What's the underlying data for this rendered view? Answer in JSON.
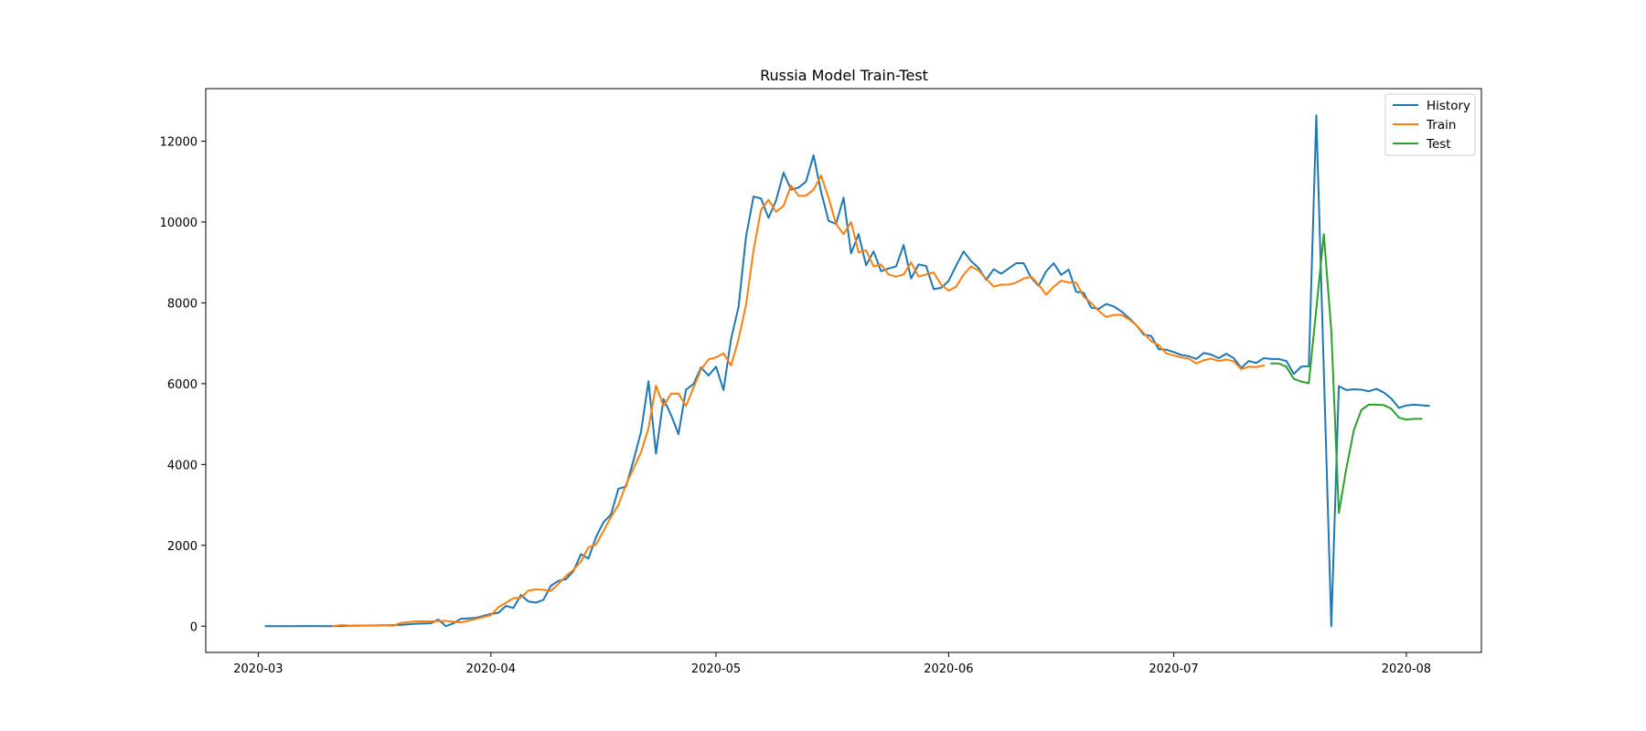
{
  "chart_data": {
    "type": "line",
    "title": "Russia Model Train-Test",
    "xlabel": "",
    "ylabel": "",
    "x_axis": {
      "type": "date",
      "ticks": [
        "2020-03",
        "2020-04",
        "2020-05",
        "2020-06",
        "2020-07",
        "2020-08"
      ],
      "range": [
        "2020-02-23",
        "2020-08-11"
      ]
    },
    "y_axis": {
      "ticks": [
        0,
        2000,
        4000,
        6000,
        8000,
        10000,
        12000
      ],
      "range": [
        -650,
        13300
      ]
    },
    "grid": false,
    "legend": {
      "placement": "top-right",
      "entries": [
        "History",
        "Train",
        "Test"
      ]
    },
    "colors": {
      "History": "#1f77b4",
      "Train": "#ff7f0e",
      "Test": "#2ca02c"
    },
    "series": [
      {
        "name": "History",
        "color": "#1f77b4",
        "points": [
          [
            "2020-03-02",
            1
          ],
          [
            "2020-03-04",
            0
          ],
          [
            "2020-03-06",
            0
          ],
          [
            "2020-03-08",
            3
          ],
          [
            "2020-03-10",
            0
          ],
          [
            "2020-03-12",
            0
          ],
          [
            "2020-03-14",
            14
          ],
          [
            "2020-03-16",
            15
          ],
          [
            "2020-03-18",
            20
          ],
          [
            "2020-03-20",
            30
          ],
          [
            "2020-03-22",
            60
          ],
          [
            "2020-03-24",
            71
          ],
          [
            "2020-03-25",
            163
          ],
          [
            "2020-03-26",
            0
          ],
          [
            "2020-03-27",
            70
          ],
          [
            "2020-03-28",
            182
          ],
          [
            "2020-03-30",
            205
          ],
          [
            "2020-04-01",
            302
          ],
          [
            "2020-04-02",
            331
          ],
          [
            "2020-04-03",
            501
          ],
          [
            "2020-04-04",
            450
          ],
          [
            "2020-04-05",
            771
          ],
          [
            "2020-04-06",
            611
          ],
          [
            "2020-04-07",
            582
          ],
          [
            "2020-04-08",
            651
          ],
          [
            "2020-04-09",
            1001
          ],
          [
            "2020-04-10",
            1121
          ],
          [
            "2020-04-11",
            1161
          ],
          [
            "2020-04-12",
            1361
          ],
          [
            "2020-04-13",
            1781
          ],
          [
            "2020-04-14",
            1671
          ],
          [
            "2020-04-15",
            2201
          ],
          [
            "2020-04-16",
            2571
          ],
          [
            "2020-04-17",
            2761
          ],
          [
            "2020-04-18",
            3401
          ],
          [
            "2020-04-19",
            3451
          ],
          [
            "2020-04-20",
            4101
          ],
          [
            "2020-04-21",
            4801
          ],
          [
            "2020-04-22",
            6061
          ],
          [
            "2020-04-23",
            4271
          ],
          [
            "2020-04-24",
            5621
          ],
          [
            "2020-04-25",
            5231
          ],
          [
            "2020-04-26",
            4751
          ],
          [
            "2020-04-27",
            5851
          ],
          [
            "2020-04-28",
            5991
          ],
          [
            "2020-04-29",
            6401
          ],
          [
            "2020-04-30",
            6201
          ],
          [
            "2020-05-01",
            6421
          ],
          [
            "2020-05-02",
            5841
          ],
          [
            "2020-05-03",
            7101
          ],
          [
            "2020-05-04",
            7901
          ],
          [
            "2020-05-05",
            9631
          ],
          [
            "2020-05-06",
            10631
          ],
          [
            "2020-05-07",
            10581
          ],
          [
            "2020-05-08",
            10101
          ],
          [
            "2020-05-09",
            10531
          ],
          [
            "2020-05-10",
            11221
          ],
          [
            "2020-05-11",
            10801
          ],
          [
            "2020-05-12",
            10851
          ],
          [
            "2020-05-13",
            11001
          ],
          [
            "2020-05-14",
            11651
          ],
          [
            "2020-05-15",
            10751
          ],
          [
            "2020-05-16",
            10031
          ],
          [
            "2020-05-17",
            9951
          ],
          [
            "2020-05-18",
            10601
          ],
          [
            "2020-05-19",
            9221
          ],
          [
            "2020-05-20",
            9701
          ],
          [
            "2020-05-21",
            8931
          ],
          [
            "2020-05-22",
            9271
          ],
          [
            "2020-05-23",
            8781
          ],
          [
            "2020-05-24",
            8851
          ],
          [
            "2020-05-25",
            8901
          ],
          [
            "2020-05-26",
            9431
          ],
          [
            "2020-05-27",
            8601
          ],
          [
            "2020-05-28",
            8951
          ],
          [
            "2020-05-29",
            8911
          ],
          [
            "2020-05-30",
            8341
          ],
          [
            "2020-05-31",
            8371
          ],
          [
            "2020-06-01",
            8541
          ],
          [
            "2020-06-02",
            8921
          ],
          [
            "2020-06-03",
            9271
          ],
          [
            "2020-06-04",
            9031
          ],
          [
            "2020-06-05",
            8861
          ],
          [
            "2020-06-06",
            8571
          ],
          [
            "2020-06-07",
            8831
          ],
          [
            "2020-06-08",
            8721
          ],
          [
            "2020-06-09",
            8851
          ],
          [
            "2020-06-10",
            8981
          ],
          [
            "2020-06-11",
            8981
          ],
          [
            "2020-06-12",
            8621
          ],
          [
            "2020-06-13",
            8421
          ],
          [
            "2020-06-14",
            8781
          ],
          [
            "2020-06-15",
            8981
          ],
          [
            "2020-06-16",
            8691
          ],
          [
            "2020-06-17",
            8821
          ],
          [
            "2020-06-18",
            8271
          ],
          [
            "2020-06-19",
            8251
          ],
          [
            "2020-06-20",
            7881
          ],
          [
            "2020-06-21",
            7851
          ],
          [
            "2020-06-22",
            7971
          ],
          [
            "2020-06-23",
            7911
          ],
          [
            "2020-06-24",
            7791
          ],
          [
            "2020-06-25",
            7631
          ],
          [
            "2020-06-26",
            7451
          ],
          [
            "2020-06-27",
            7211
          ],
          [
            "2020-06-28",
            7181
          ],
          [
            "2020-06-29",
            6851
          ],
          [
            "2020-06-30",
            6841
          ],
          [
            "2020-07-01",
            6781
          ],
          [
            "2020-07-02",
            6711
          ],
          [
            "2020-07-03",
            6681
          ],
          [
            "2020-07-04",
            6611
          ],
          [
            "2020-07-05",
            6761
          ],
          [
            "2020-07-06",
            6721
          ],
          [
            "2020-07-07",
            6631
          ],
          [
            "2020-07-08",
            6741
          ],
          [
            "2020-07-09",
            6631
          ],
          [
            "2020-07-10",
            6391
          ],
          [
            "2020-07-11",
            6561
          ],
          [
            "2020-07-12",
            6511
          ],
          [
            "2020-07-13",
            6631
          ],
          [
            "2020-07-14",
            6611
          ],
          [
            "2020-07-15",
            6611
          ],
          [
            "2020-07-16",
            6561
          ],
          [
            "2020-07-17",
            6241
          ],
          [
            "2020-07-18",
            6421
          ],
          [
            "2020-07-19",
            6431
          ],
          [
            "2020-07-20",
            12641
          ],
          [
            "2020-07-22",
            0
          ],
          [
            "2020-07-23",
            5941
          ],
          [
            "2020-07-24",
            5841
          ],
          [
            "2020-07-25",
            5861
          ],
          [
            "2020-07-26",
            5851
          ],
          [
            "2020-07-27",
            5811
          ],
          [
            "2020-07-28",
            5871
          ],
          [
            "2020-07-29",
            5781
          ],
          [
            "2020-07-30",
            5631
          ],
          [
            "2020-07-31",
            5401
          ],
          [
            "2020-08-01",
            5461
          ],
          [
            "2020-08-02",
            5481
          ],
          [
            "2020-08-04",
            5451
          ]
        ]
      },
      {
        "name": "Train",
        "color": "#ff7f0e",
        "points": [
          [
            "2020-03-11",
            0
          ],
          [
            "2020-03-12",
            25
          ],
          [
            "2020-03-14",
            5
          ],
          [
            "2020-03-16",
            20
          ],
          [
            "2020-03-18",
            25
          ],
          [
            "2020-03-19",
            10
          ],
          [
            "2020-03-20",
            80
          ],
          [
            "2020-03-22",
            120
          ],
          [
            "2020-03-24",
            120
          ],
          [
            "2020-03-26",
            130
          ],
          [
            "2020-03-28",
            90
          ],
          [
            "2020-03-30",
            180
          ],
          [
            "2020-04-01",
            270
          ],
          [
            "2020-04-02",
            470
          ],
          [
            "2020-04-03",
            580
          ],
          [
            "2020-04-04",
            690
          ],
          [
            "2020-04-05",
            710
          ],
          [
            "2020-04-06",
            880
          ],
          [
            "2020-04-07",
            910
          ],
          [
            "2020-04-08",
            900
          ],
          [
            "2020-04-09",
            870
          ],
          [
            "2020-04-10",
            1050
          ],
          [
            "2020-04-11",
            1240
          ],
          [
            "2020-04-12",
            1390
          ],
          [
            "2020-04-13",
            1600
          ],
          [
            "2020-04-14",
            1950
          ],
          [
            "2020-04-15",
            2020
          ],
          [
            "2020-04-16",
            2350
          ],
          [
            "2020-04-17",
            2700
          ],
          [
            "2020-04-18",
            3000
          ],
          [
            "2020-04-19",
            3500
          ],
          [
            "2020-04-20",
            3900
          ],
          [
            "2020-04-21",
            4300
          ],
          [
            "2020-04-22",
            4900
          ],
          [
            "2020-04-23",
            5950
          ],
          [
            "2020-04-24",
            5450
          ],
          [
            "2020-04-25",
            5750
          ],
          [
            "2020-04-26",
            5750
          ],
          [
            "2020-04-27",
            5450
          ],
          [
            "2020-04-28",
            5900
          ],
          [
            "2020-04-29",
            6350
          ],
          [
            "2020-04-30",
            6600
          ],
          [
            "2020-05-01",
            6650
          ],
          [
            "2020-05-02",
            6750
          ],
          [
            "2020-05-03",
            6450
          ],
          [
            "2020-05-04",
            7100
          ],
          [
            "2020-05-05",
            7950
          ],
          [
            "2020-05-06",
            9300
          ],
          [
            "2020-05-07",
            10300
          ],
          [
            "2020-05-08",
            10550
          ],
          [
            "2020-05-09",
            10250
          ],
          [
            "2020-05-10",
            10400
          ],
          [
            "2020-05-11",
            10900
          ],
          [
            "2020-05-12",
            10650
          ],
          [
            "2020-05-13",
            10650
          ],
          [
            "2020-05-14",
            10800
          ],
          [
            "2020-05-15",
            11150
          ],
          [
            "2020-05-16",
            10600
          ],
          [
            "2020-05-17",
            9950
          ],
          [
            "2020-05-18",
            9700
          ],
          [
            "2020-05-19",
            10000
          ],
          [
            "2020-05-20",
            9250
          ],
          [
            "2020-05-21",
            9300
          ],
          [
            "2020-05-22",
            8900
          ],
          [
            "2020-05-23",
            8950
          ],
          [
            "2020-05-24",
            8700
          ],
          [
            "2020-05-25",
            8650
          ],
          [
            "2020-05-26",
            8700
          ],
          [
            "2020-05-27",
            9000
          ],
          [
            "2020-05-28",
            8650
          ],
          [
            "2020-05-29",
            8700
          ],
          [
            "2020-05-30",
            8750
          ],
          [
            "2020-05-31",
            8450
          ],
          [
            "2020-06-01",
            8300
          ],
          [
            "2020-06-02",
            8400
          ],
          [
            "2020-06-03",
            8700
          ],
          [
            "2020-06-04",
            8900
          ],
          [
            "2020-06-05",
            8800
          ],
          [
            "2020-06-06",
            8600
          ],
          [
            "2020-06-07",
            8400
          ],
          [
            "2020-06-08",
            8450
          ],
          [
            "2020-06-09",
            8450
          ],
          [
            "2020-06-10",
            8500
          ],
          [
            "2020-06-11",
            8600
          ],
          [
            "2020-06-12",
            8650
          ],
          [
            "2020-06-13",
            8450
          ],
          [
            "2020-06-14",
            8200
          ],
          [
            "2020-06-15",
            8400
          ],
          [
            "2020-06-16",
            8550
          ],
          [
            "2020-06-17",
            8500
          ],
          [
            "2020-06-18",
            8500
          ],
          [
            "2020-06-19",
            8150
          ],
          [
            "2020-06-20",
            8000
          ],
          [
            "2020-06-21",
            7800
          ],
          [
            "2020-06-22",
            7650
          ],
          [
            "2020-06-23",
            7700
          ],
          [
            "2020-06-24",
            7700
          ],
          [
            "2020-06-25",
            7600
          ],
          [
            "2020-06-26",
            7450
          ],
          [
            "2020-06-27",
            7250
          ],
          [
            "2020-06-28",
            7050
          ],
          [
            "2020-06-29",
            6950
          ],
          [
            "2020-06-30",
            6750
          ],
          [
            "2020-07-01",
            6700
          ],
          [
            "2020-07-02",
            6650
          ],
          [
            "2020-07-03",
            6620
          ],
          [
            "2020-07-04",
            6500
          ],
          [
            "2020-07-05",
            6580
          ],
          [
            "2020-07-06",
            6620
          ],
          [
            "2020-07-07",
            6560
          ],
          [
            "2020-07-08",
            6600
          ],
          [
            "2020-07-09",
            6550
          ],
          [
            "2020-07-10",
            6360
          ],
          [
            "2020-07-11",
            6420
          ],
          [
            "2020-07-12",
            6410
          ],
          [
            "2020-07-13",
            6450
          ]
        ]
      },
      {
        "name": "Test",
        "color": "#2ca02c",
        "points": [
          [
            "2020-07-14",
            6500
          ],
          [
            "2020-07-15",
            6500
          ],
          [
            "2020-07-16",
            6420
          ],
          [
            "2020-07-17",
            6120
          ],
          [
            "2020-07-18",
            6050
          ],
          [
            "2020-07-19",
            6010
          ],
          [
            "2020-07-21",
            9700
          ],
          [
            "2020-07-22",
            7300
          ],
          [
            "2020-07-23",
            2800
          ],
          [
            "2020-07-24",
            3900
          ],
          [
            "2020-07-25",
            4850
          ],
          [
            "2020-07-26",
            5350
          ],
          [
            "2020-07-27",
            5480
          ],
          [
            "2020-07-28",
            5480
          ],
          [
            "2020-07-29",
            5470
          ],
          [
            "2020-07-30",
            5380
          ],
          [
            "2020-07-31",
            5160
          ],
          [
            "2020-08-01",
            5110
          ],
          [
            "2020-08-02",
            5130
          ],
          [
            "2020-08-03",
            5130
          ]
        ]
      }
    ]
  }
}
